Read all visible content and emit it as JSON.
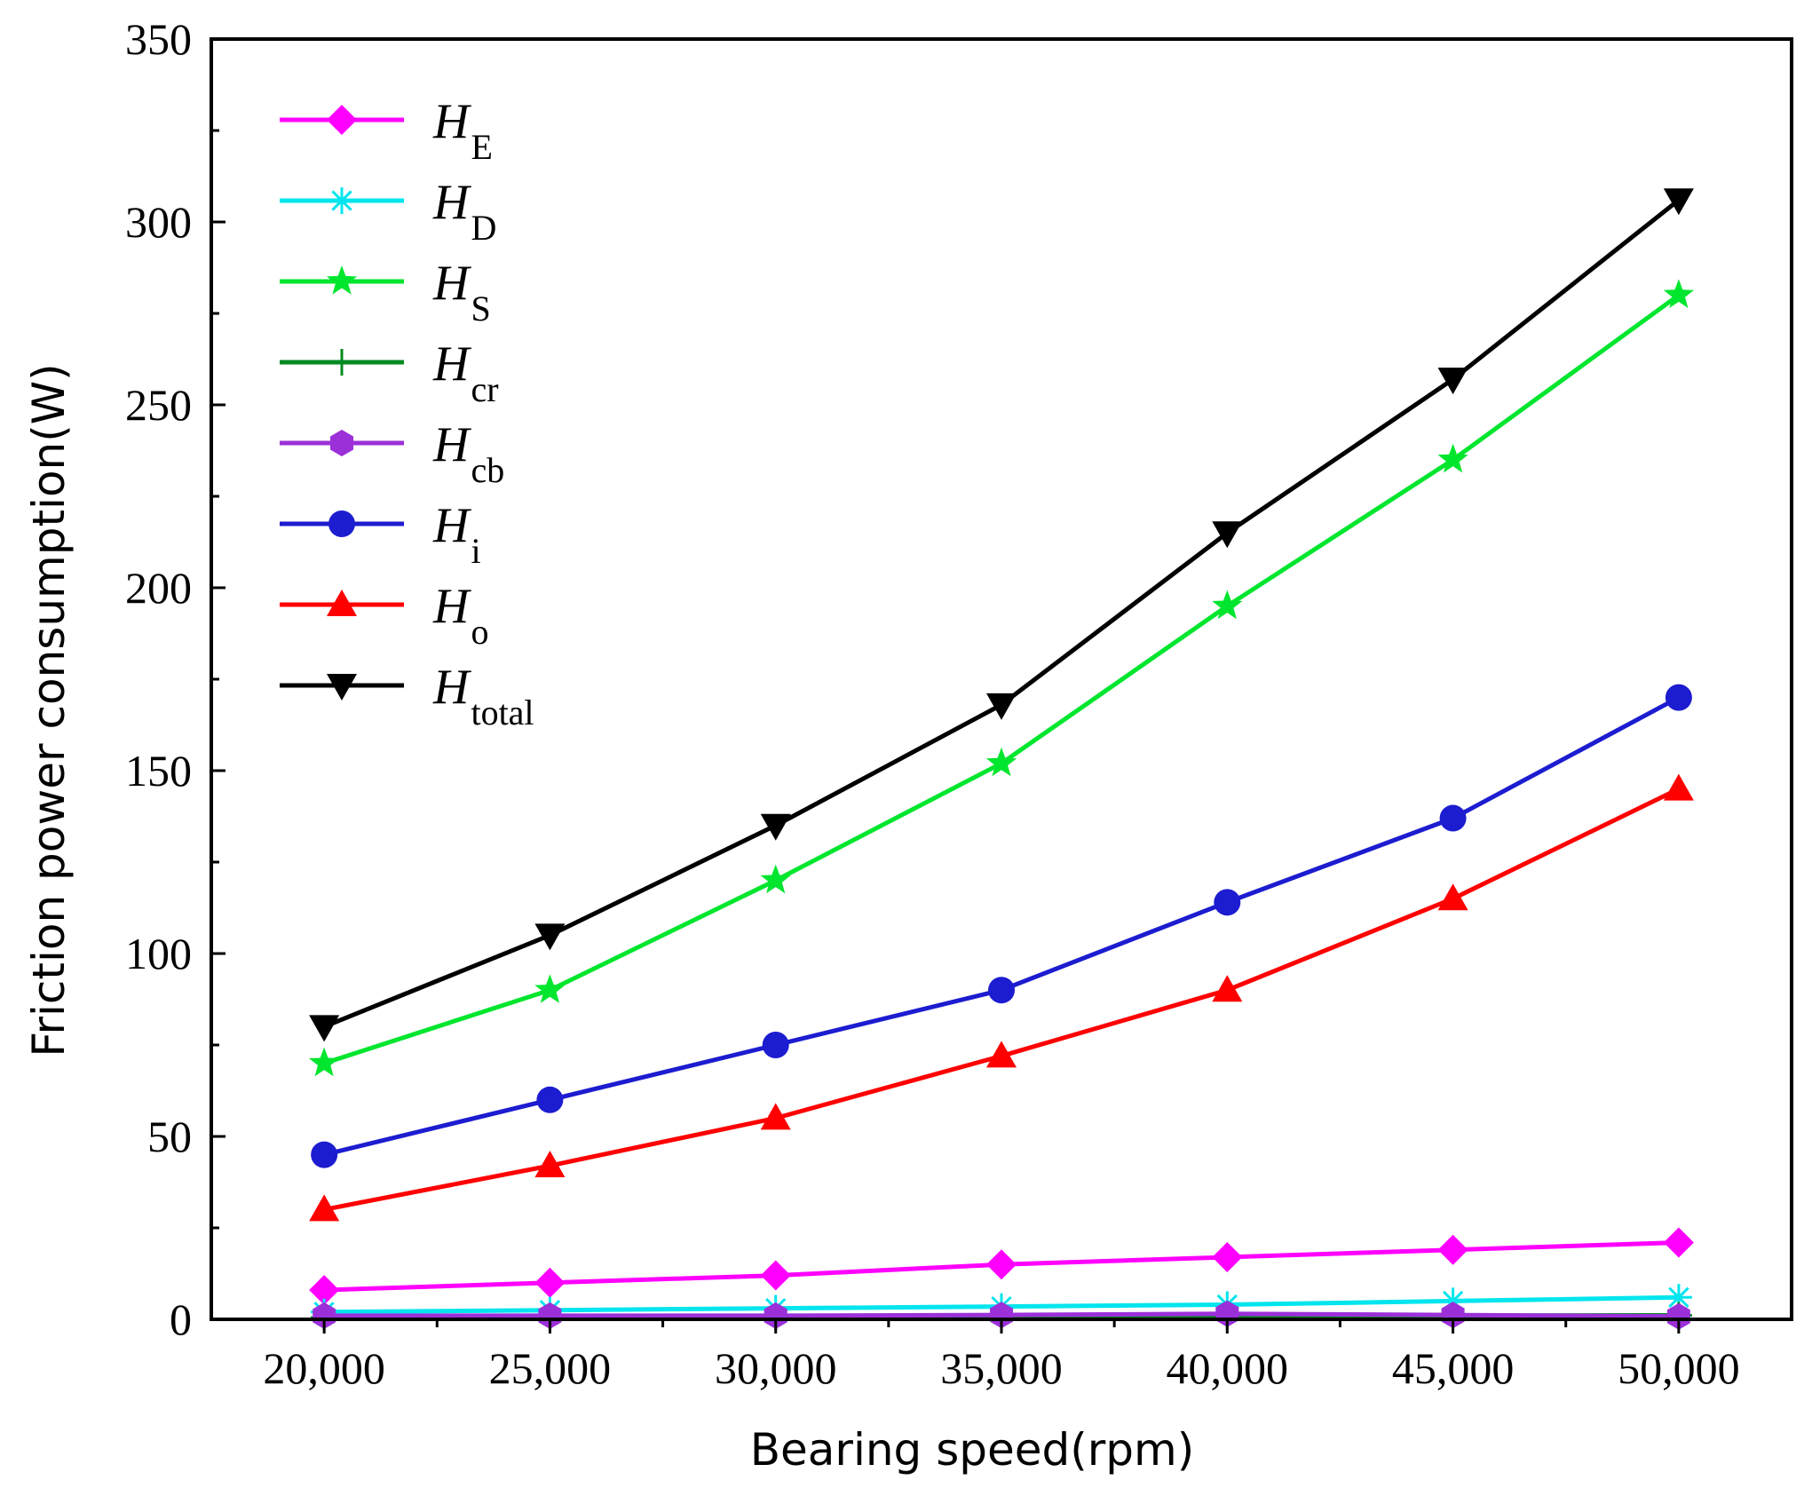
{
  "chart_data": {
    "type": "line",
    "title": "",
    "xlabel": "Bearing speed(rpm)",
    "ylabel": "Friction power consumption(W)",
    "x": [
      20000,
      25000,
      30000,
      35000,
      40000,
      45000,
      50000
    ],
    "x_tick_labels": [
      "20,000",
      "25,000",
      "30,000",
      "35,000",
      "40,000",
      "45,000",
      "50,000"
    ],
    "xlim": [
      17500,
      52500
    ],
    "ylim": [
      0,
      350
    ],
    "y_ticks": [
      0,
      50,
      100,
      150,
      200,
      250,
      300,
      350
    ],
    "y_tick_labels": [
      "0",
      "50",
      "100",
      "150",
      "200",
      "250",
      "300",
      "350"
    ],
    "grid": false,
    "legend_position": "top-left",
    "series": [
      {
        "name": "HE",
        "label_main": "H",
        "label_sub": "E",
        "color": "#ff00ff",
        "marker": "diamond",
        "values": [
          8,
          10,
          12,
          15,
          17,
          19,
          21
        ]
      },
      {
        "name": "HD",
        "label_main": "H",
        "label_sub": "D",
        "color": "#00e5ee",
        "marker": "asterisk",
        "values": [
          2,
          2.5,
          3,
          3.5,
          4,
          5,
          6
        ]
      },
      {
        "name": "HS",
        "label_main": "H",
        "label_sub": "S",
        "color": "#00e62e",
        "marker": "star",
        "values": [
          70,
          90,
          120,
          152,
          195,
          235,
          280
        ]
      },
      {
        "name": "Hcr",
        "label_main": "H",
        "label_sub": "cr",
        "color": "#008a1f",
        "marker": "plus",
        "values": [
          0.5,
          0.6,
          0.7,
          0.8,
          0.9,
          1.0,
          1.1
        ]
      },
      {
        "name": "Hcb",
        "label_main": "H",
        "label_sub": "cb",
        "color": "#9b30d9",
        "marker": "hexagon",
        "values": [
          1,
          1,
          1,
          1.2,
          1.5,
          1.2,
          0.8
        ]
      },
      {
        "name": "Hi",
        "label_main": "H",
        "label_sub": "i",
        "color": "#1c1cd0",
        "marker": "circle",
        "values": [
          45,
          60,
          75,
          90,
          114,
          137,
          170
        ]
      },
      {
        "name": "Ho",
        "label_main": "H",
        "label_sub": "o",
        "color": "#ff0000",
        "marker": "triangle-up",
        "values": [
          30,
          42,
          55,
          72,
          90,
          115,
          145
        ]
      },
      {
        "name": "Htotal",
        "label_main": "H",
        "label_sub": "total",
        "color": "#000000",
        "marker": "triangle-down",
        "values": [
          80,
          105,
          135,
          168,
          215,
          257,
          306
        ]
      }
    ]
  }
}
